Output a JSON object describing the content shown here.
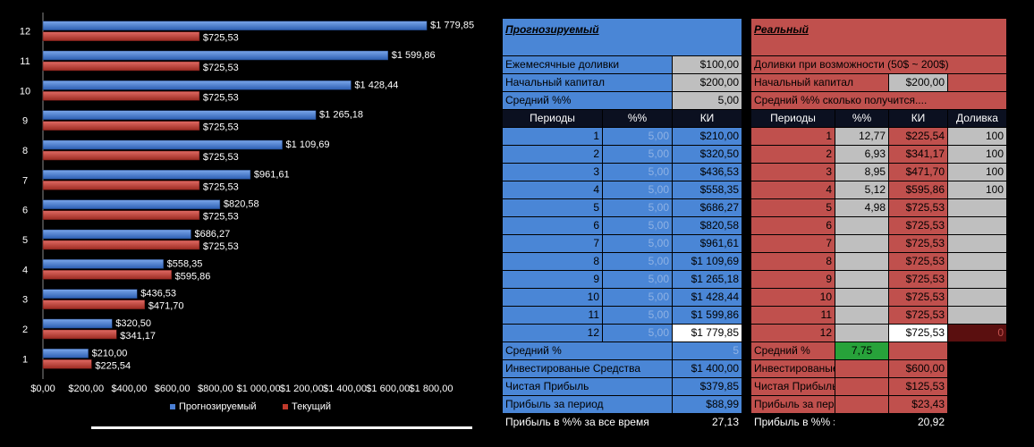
{
  "chart_data": {
    "type": "bar",
    "orientation": "horizontal",
    "categories": [
      "1",
      "2",
      "3",
      "4",
      "5",
      "6",
      "7",
      "8",
      "9",
      "10",
      "11",
      "12"
    ],
    "series": [
      {
        "name": "Прогнозируемый",
        "color": "#4a7fd4",
        "values": [
          210,
          320.5,
          436.53,
          558.35,
          686.27,
          820.58,
          961.61,
          1109.69,
          1265.18,
          1428.44,
          1599.86,
          1779.85
        ],
        "labels": [
          "$210,00",
          "$320,50",
          "$436,53",
          "$558,35",
          "$686,27",
          "$820,58",
          "$961,61",
          "$1 109,69",
          "$1 265,18",
          "$1 428,44",
          "$1 599,86",
          "$1 779,85"
        ]
      },
      {
        "name": "Текущий",
        "color": "#c0392b",
        "values": [
          225.54,
          341.17,
          471.7,
          595.86,
          725.53,
          725.53,
          725.53,
          725.53,
          725.53,
          725.53,
          725.53,
          725.53
        ],
        "labels": [
          "$225,54",
          "$341,17",
          "$471,70",
          "$595,86",
          "$725,53",
          "$725,53",
          "$725,53",
          "$725,53",
          "$725,53",
          "$725,53",
          "$725,53",
          "$725,53"
        ]
      }
    ],
    "xlim": [
      0,
      1800
    ],
    "xticks": [
      "$0,00",
      "$200,00",
      "$400,00",
      "$600,00",
      "$800,00",
      "$1 000,00",
      "$1 200,00",
      "$1 400,00",
      "$1 600,00",
      "$1 800,00"
    ],
    "legend_position": "bottom",
    "grid": false
  },
  "forecast": {
    "title": "Прогнозируемый",
    "monthly_label": "Ежемесячные доливки",
    "monthly_value": "$100,00",
    "capital_label": "Начальный капитал",
    "capital_value": "$200,00",
    "avg_label": "Средний  %%",
    "avg_value": "5,00",
    "headers": [
      "Периоды",
      "%%",
      "КИ"
    ],
    "rows": [
      [
        "1",
        "5,00",
        "$210,00"
      ],
      [
        "2",
        "5,00",
        "$320,50"
      ],
      [
        "3",
        "5,00",
        "$436,53"
      ],
      [
        "4",
        "5,00",
        "$558,35"
      ],
      [
        "5",
        "5,00",
        "$686,27"
      ],
      [
        "6",
        "5,00",
        "$820,58"
      ],
      [
        "7",
        "5,00",
        "$961,61"
      ],
      [
        "8",
        "5,00",
        "$1 109,69"
      ],
      [
        "9",
        "5,00",
        "$1 265,18"
      ],
      [
        "10",
        "5,00",
        "$1 428,44"
      ],
      [
        "11",
        "5,00",
        "$1 599,86"
      ],
      [
        "12",
        "5,00",
        "$1 779,85"
      ]
    ],
    "summary": [
      [
        "Средний %",
        "5"
      ],
      [
        "Инвестированые Средства",
        "$1 400,00"
      ],
      [
        "Чистая Прибыль",
        "$379,85"
      ],
      [
        "Прибыль за период",
        "$88,99"
      ],
      [
        "Прибыль в %% за все время",
        "27,13"
      ]
    ]
  },
  "real": {
    "title": "Реальный",
    "topup_label": "Доливки при возможности (50$ ~ 200$)",
    "capital_label": "Начальный капитал",
    "capital_value": "$200,00",
    "avg_label": "Средний  %%  сколько получится....",
    "headers": [
      "Периоды",
      "%%",
      "КИ",
      "Доливка"
    ],
    "rows": [
      [
        "1",
        "12,77",
        "$225,54",
        "100"
      ],
      [
        "2",
        "6,93",
        "$341,17",
        "100"
      ],
      [
        "3",
        "8,95",
        "$471,70",
        "100"
      ],
      [
        "4",
        "5,12",
        "$595,86",
        "100"
      ],
      [
        "5",
        "4,98",
        "$725,53",
        ""
      ],
      [
        "6",
        "",
        "$725,53",
        ""
      ],
      [
        "7",
        "",
        "$725,53",
        ""
      ],
      [
        "8",
        "",
        "$725,53",
        ""
      ],
      [
        "9",
        "",
        "$725,53",
        ""
      ],
      [
        "10",
        "",
        "$725,53",
        ""
      ],
      [
        "11",
        "",
        "$725,53",
        ""
      ],
      [
        "12",
        "",
        "$725,53",
        "0"
      ]
    ],
    "summary": [
      [
        "Средний %",
        "7,75"
      ],
      [
        "Инвестированые Средс",
        "$600,00"
      ],
      [
        "Чистая Прибыль",
        "$125,53"
      ],
      [
        "Прибыль за период",
        "$23,43"
      ],
      [
        "Прибыль в %% за все вр",
        "20,92"
      ]
    ]
  }
}
